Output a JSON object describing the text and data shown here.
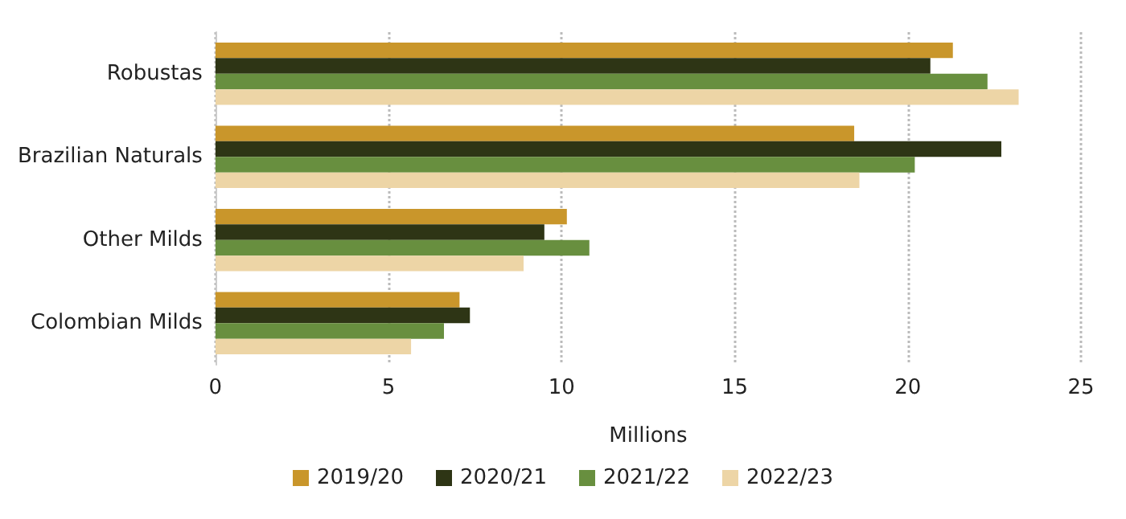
{
  "chart_data": {
    "type": "bar",
    "orientation": "horizontal",
    "xlabel": "Millions",
    "categories": [
      "Robustas",
      "Brazilian Naturals",
      "Other Milds",
      "Colombian Milds"
    ],
    "series": [
      {
        "name": "2019/20",
        "color": "#c9962b",
        "values": [
          21.3,
          18.45,
          10.15,
          7.05
        ]
      },
      {
        "name": "2020/21",
        "color": "#2e3515",
        "values": [
          20.65,
          22.7,
          9.5,
          7.35
        ]
      },
      {
        "name": "2021/22",
        "color": "#688f3f",
        "values": [
          22.3,
          20.2,
          10.8,
          6.6
        ]
      },
      {
        "name": "2022/23",
        "color": "#edd5a6",
        "values": [
          23.2,
          18.6,
          8.9,
          5.65
        ]
      }
    ],
    "xlim": [
      0,
      25
    ],
    "xticks": [
      0,
      5,
      10,
      15,
      20,
      25
    ],
    "grid": "x",
    "legend": "bottom"
  }
}
